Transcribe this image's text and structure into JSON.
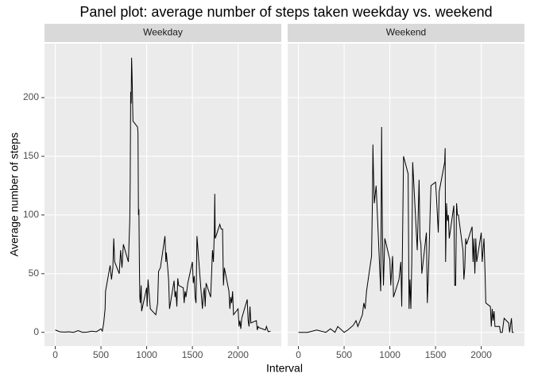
{
  "chart_data": [
    {
      "type": "line",
      "title": "Panel plot: average number of steps taken weekday vs. weekend",
      "x_label": "Interval",
      "y_label": "Average number of steps",
      "facet": "Weekday",
      "color": "#000000",
      "grid": true,
      "xlim": [
        -117.75,
        2472.75
      ],
      "ylim": [
        -11.7,
        246
      ],
      "xticks": [
        0,
        500,
        1000,
        1500,
        2000
      ],
      "yticks": [
        0,
        50,
        100,
        150,
        200
      ],
      "x": [
        0,
        50,
        100,
        150,
        200,
        250,
        300,
        350,
        400,
        450,
        500,
        515,
        530,
        545,
        550,
        600,
        615,
        630,
        640,
        650,
        700,
        715,
        730,
        745,
        800,
        815,
        820,
        825,
        830,
        835,
        840,
        850,
        900,
        905,
        910,
        915,
        920,
        925,
        930,
        940,
        945,
        950,
        1000,
        1005,
        1015,
        1030,
        1040,
        1100,
        1120,
        1130,
        1150,
        1200,
        1210,
        1215,
        1230,
        1240,
        1250,
        1300,
        1310,
        1320,
        1330,
        1340,
        1350,
        1400,
        1410,
        1420,
        1430,
        1450,
        1500,
        1510,
        1520,
        1530,
        1540,
        1550,
        1600,
        1610,
        1620,
        1630,
        1640,
        1650,
        1700,
        1720,
        1730,
        1740,
        1745,
        1750,
        1800,
        1815,
        1830,
        1840,
        1850,
        1900,
        1910,
        1920,
        1930,
        1940,
        1950,
        2000,
        2010,
        2020,
        2030,
        2040,
        2100,
        2110,
        2120,
        2130,
        2140,
        2200,
        2210,
        2220,
        2230,
        2300,
        2310,
        2330,
        2355
      ],
      "values": [
        2,
        0.5,
        0.2,
        0.5,
        0,
        1.5,
        0,
        0.2,
        1,
        0.5,
        3,
        1,
        8,
        20,
        35,
        57,
        45,
        55,
        80,
        60,
        50,
        70,
        55,
        75,
        60,
        95,
        130,
        205,
        195,
        234,
        220,
        180,
        175,
        170,
        100,
        105,
        60,
        30,
        25,
        40,
        18,
        20,
        38,
        22,
        45,
        30,
        20,
        15,
        25,
        52,
        55,
        82,
        60,
        68,
        55,
        45,
        20,
        44,
        30,
        35,
        22,
        46,
        40,
        38,
        25,
        35,
        30,
        42,
        60,
        42,
        48,
        30,
        25,
        82,
        30,
        20,
        32,
        38,
        22,
        42,
        30,
        70,
        60,
        85,
        118,
        80,
        92,
        88,
        88,
        40,
        55,
        35,
        20,
        30,
        25,
        35,
        15,
        20,
        5,
        10,
        3,
        12,
        28,
        10,
        5,
        22,
        8,
        10,
        2,
        5,
        4,
        2,
        5,
        0.5,
        1
      ]
    },
    {
      "type": "line",
      "facet": "Weekend",
      "color": "#000000",
      "xlim": [
        -117.75,
        2472.75
      ],
      "ylim": [
        -11.7,
        246
      ],
      "xticks": [
        0,
        500,
        1000,
        1500,
        2000
      ],
      "x": [
        0,
        50,
        100,
        200,
        300,
        350,
        400,
        430,
        500,
        540,
        600,
        630,
        650,
        700,
        715,
        730,
        745,
        800,
        810,
        815,
        820,
        830,
        850,
        900,
        905,
        910,
        915,
        920,
        930,
        945,
        1000,
        1010,
        1030,
        1040,
        1100,
        1120,
        1130,
        1150,
        1200,
        1210,
        1220,
        1230,
        1240,
        1250,
        1300,
        1320,
        1330,
        1340,
        1350,
        1400,
        1410,
        1420,
        1430,
        1440,
        1450,
        1500,
        1510,
        1520,
        1530,
        1540,
        1600,
        1605,
        1610,
        1620,
        1630,
        1640,
        1650,
        1700,
        1710,
        1720,
        1730,
        1740,
        1750,
        1800,
        1810,
        1820,
        1830,
        1840,
        1900,
        1910,
        1920,
        1930,
        1940,
        1950,
        2000,
        2010,
        2030,
        2040,
        2050,
        2100,
        2110,
        2120,
        2130,
        2140,
        2150,
        2200,
        2210,
        2230,
        2250,
        2300,
        2310,
        2330,
        2340,
        2355
      ],
      "values": [
        0,
        0,
        0,
        2,
        0,
        3,
        0,
        5,
        0,
        2,
        6,
        10,
        5,
        15,
        25,
        20,
        35,
        65,
        115,
        160,
        140,
        110,
        125,
        35,
        100,
        175,
        115,
        80,
        40,
        80,
        62,
        40,
        65,
        30,
        45,
        60,
        22,
        150,
        135,
        20,
        45,
        20,
        60,
        145,
        70,
        130,
        80,
        75,
        50,
        85,
        25,
        45,
        70,
        100,
        125,
        128,
        115,
        100,
        85,
        120,
        145,
        157,
        60,
        110,
        95,
        100,
        80,
        108,
        40,
        40,
        110,
        100,
        100,
        70,
        45,
        55,
        80,
        75,
        90,
        60,
        80,
        50,
        80,
        60,
        85,
        60,
        80,
        55,
        25,
        22,
        5,
        20,
        10,
        18,
        5,
        5,
        0,
        0,
        12,
        8,
        0,
        12,
        0,
        0
      ]
    }
  ]
}
